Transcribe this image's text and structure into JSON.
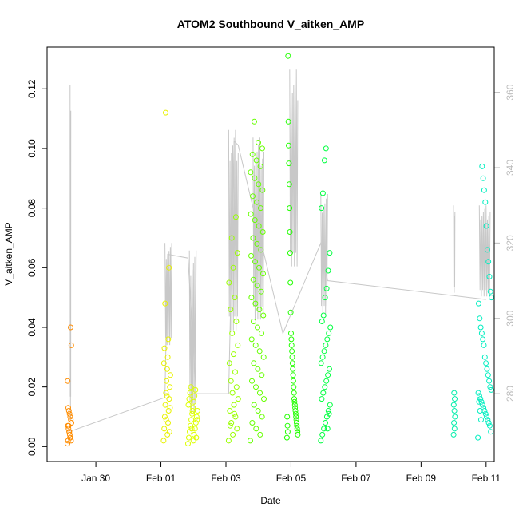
{
  "chart_data": {
    "type": "scatter",
    "title": "ATOM2 Southbound V_aitken_AMP",
    "xlabel": "Date",
    "ylabel": "V_aitken_AMP",
    "x_unit": "days",
    "xlim": [
      "2017-01-28 12:00",
      "2017-02-11 06:00"
    ],
    "ylim": [
      -0.005,
      0.134
    ],
    "y2lim": [
      262,
      372
    ],
    "x_ticks": [
      "Jan 30",
      "Feb 01",
      "Feb 03",
      "Feb 05",
      "Feb 07",
      "Feb 09",
      "Feb 11"
    ],
    "y_ticks": [
      "0.00",
      "0.02",
      "0.04",
      "0.06",
      "0.08",
      "0.10",
      "0.12"
    ],
    "y2_ticks": [
      "280",
      "300",
      "320",
      "340",
      "360"
    ],
    "grid": false,
    "legend": "none",
    "line_color": "#c8c8c8",
    "clusters": [
      {
        "start": "2017-01-29 03:00",
        "end": "2017-01-29 06:00",
        "color": "#ff8c00",
        "points": [
          0.001,
          0.002,
          0.003,
          0.004,
          0.005,
          0.006,
          0.007,
          0.008,
          0.009,
          0.01,
          0.011,
          0.012,
          0.013,
          0.022,
          0.034,
          0.04,
          0.003,
          0.005,
          0.007,
          0.002
        ]
      },
      {
        "start": "2017-02-01 02:00",
        "end": "2017-02-01 07:00",
        "color": "#e8f200",
        "points": [
          0.002,
          0.004,
          0.006,
          0.008,
          0.01,
          0.012,
          0.014,
          0.016,
          0.018,
          0.02,
          0.022,
          0.024,
          0.026,
          0.028,
          0.03,
          0.033,
          0.036,
          0.048,
          0.06,
          0.112,
          0.005,
          0.009,
          0.013,
          0.017
        ]
      },
      {
        "start": "2017-02-01 20:00",
        "end": "2017-02-02 03:00",
        "color": "#ddff00",
        "points": [
          0.001,
          0.002,
          0.003,
          0.004,
          0.005,
          0.006,
          0.007,
          0.008,
          0.009,
          0.01,
          0.011,
          0.012,
          0.013,
          0.014,
          0.015,
          0.016,
          0.017,
          0.018,
          0.019,
          0.02,
          0.003,
          0.006,
          0.009,
          0.012
        ]
      },
      {
        "start": "2017-02-03 02:00",
        "end": "2017-02-03 09:00",
        "color": "#99ff00",
        "points": [
          0.002,
          0.004,
          0.006,
          0.008,
          0.01,
          0.012,
          0.014,
          0.016,
          0.018,
          0.02,
          0.022,
          0.025,
          0.028,
          0.031,
          0.034,
          0.038,
          0.042,
          0.046,
          0.05,
          0.055,
          0.06,
          0.065,
          0.07,
          0.077,
          0.007,
          0.011
        ]
      },
      {
        "start": "2017-02-03 18:00",
        "end": "2017-02-04 04:00",
        "color": "#66ff00",
        "points": [
          0.002,
          0.004,
          0.006,
          0.008,
          0.01,
          0.012,
          0.014,
          0.016,
          0.018,
          0.02,
          0.022,
          0.024,
          0.026,
          0.028,
          0.03,
          0.032,
          0.034,
          0.036,
          0.038,
          0.04,
          0.042,
          0.044,
          0.046,
          0.048,
          0.05,
          0.052,
          0.054,
          0.056,
          0.058,
          0.06,
          0.062,
          0.064,
          0.066,
          0.068,
          0.07,
          0.072,
          0.074,
          0.076,
          0.078,
          0.08,
          0.082,
          0.084,
          0.086,
          0.088,
          0.09,
          0.092,
          0.094,
          0.096,
          0.098,
          0.1,
          0.102,
          0.109
        ]
      },
      {
        "start": "2017-02-04 21:00",
        "end": "2017-02-05 05:00",
        "color": "#22ff00",
        "points": [
          0.003,
          0.004,
          0.005,
          0.006,
          0.007,
          0.008,
          0.009,
          0.01,
          0.011,
          0.012,
          0.013,
          0.014,
          0.015,
          0.016,
          0.018,
          0.02,
          0.022,
          0.024,
          0.026,
          0.028,
          0.03,
          0.032,
          0.034,
          0.036,
          0.038,
          0.045,
          0.055,
          0.065,
          0.072,
          0.08,
          0.088,
          0.095,
          0.101,
          0.109,
          0.131,
          0.005,
          0.007,
          0.01
        ]
      },
      {
        "start": "2017-02-05 22:00",
        "end": "2017-02-06 05:00",
        "color": "#00ff40",
        "points": [
          0.002,
          0.004,
          0.006,
          0.008,
          0.01,
          0.012,
          0.014,
          0.016,
          0.018,
          0.02,
          0.022,
          0.024,
          0.026,
          0.028,
          0.03,
          0.032,
          0.034,
          0.036,
          0.038,
          0.04,
          0.042,
          0.044,
          0.05,
          0.053,
          0.059,
          0.065,
          0.08,
          0.085,
          0.096,
          0.1,
          0.006,
          0.011
        ]
      },
      {
        "start": "2017-02-10 00:00",
        "end": "2017-02-10 01:00",
        "color": "#00eeaa",
        "points": [
          0.004,
          0.006,
          0.008,
          0.01,
          0.012,
          0.014,
          0.016,
          0.018
        ]
      },
      {
        "start": "2017-02-10 18:00",
        "end": "2017-02-11 04:00",
        "color": "#00eec0",
        "points": [
          0.003,
          0.005,
          0.007,
          0.008,
          0.009,
          0.01,
          0.011,
          0.012,
          0.013,
          0.014,
          0.015,
          0.016,
          0.017,
          0.018,
          0.019,
          0.02,
          0.022,
          0.024,
          0.026,
          0.028,
          0.03,
          0.034,
          0.036,
          0.038,
          0.04,
          0.043,
          0.048,
          0.05,
          0.052,
          0.057,
          0.062,
          0.066,
          0.074,
          0.082,
          0.086,
          0.09,
          0.094,
          0.009,
          0.012,
          0.015
        ]
      }
    ],
    "secondary_series": {
      "name": "",
      "axis": "right",
      "points": [
        [
          "2017-01-29 05:00",
          270
        ],
        [
          "2017-02-01 03:00",
          279
        ],
        [
          "2017-02-01 05:00",
          317
        ],
        [
          "2017-02-01 20:00",
          316
        ],
        [
          "2017-02-02 02:00",
          280
        ],
        [
          "2017-02-03 02:00",
          280
        ],
        [
          "2017-02-03 06:00",
          347
        ],
        [
          "2017-02-03 09:00",
          346
        ],
        [
          "2017-02-04 18:00",
          296
        ],
        [
          "2017-02-05 22:00",
          320
        ],
        [
          "2017-02-06 03:00",
          310
        ],
        [
          "2017-02-11 00:00",
          305
        ]
      ],
      "spikes": [
        {
          "start": "2017-01-29 05:00",
          "end": "2017-01-29 05:30",
          "lo": 270,
          "hi": 362
        },
        {
          "start": "2017-02-01 03:00",
          "end": "2017-02-01 08:00",
          "lo": 292,
          "hi": 320
        },
        {
          "start": "2017-02-01 21:00",
          "end": "2017-02-02 02:00",
          "lo": 273,
          "hi": 318
        },
        {
          "start": "2017-02-03 02:00",
          "end": "2017-02-03 09:00",
          "lo": 295,
          "hi": 350
        },
        {
          "start": "2017-02-03 20:00",
          "end": "2017-02-04 04:00",
          "lo": 298,
          "hi": 348
        },
        {
          "start": "2017-02-04 23:00",
          "end": "2017-02-05 05:00",
          "lo": 312,
          "hi": 366
        },
        {
          "start": "2017-02-05 22:00",
          "end": "2017-02-06 03:00",
          "lo": 300,
          "hi": 333
        },
        {
          "start": "2017-02-10 00:00",
          "end": "2017-02-10 01:00",
          "lo": 306,
          "hi": 330
        },
        {
          "start": "2017-02-10 19:00",
          "end": "2017-02-11 03:00",
          "lo": 305,
          "hi": 330
        }
      ]
    }
  }
}
